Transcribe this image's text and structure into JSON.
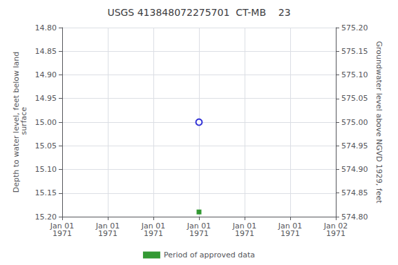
{
  "chart_data": {
    "type": "scatter",
    "title": "USGS 413848072275701  CT-MB    23",
    "ylabel": "Depth to water level, feet below land\n surface",
    "y2label": "Groundwater level above NGVD 1929, feet",
    "categories": [
      "Jan 01\n1971",
      "Jan 01\n1971",
      "Jan 01\n1971",
      "Jan 01\n1971",
      "Jan 01\n1971",
      "Jan 01\n1971",
      "Jan 02\n1971"
    ],
    "series": [
      {
        "values": [
          null,
          null,
          null,
          15.0,
          null,
          null,
          null
        ],
        "color": "#0000cc",
        "marker": "open circle"
      },
      {
        "name": "Period of approved data",
        "values": [
          null,
          null,
          null,
          15.19,
          null,
          null,
          null
        ],
        "color": "#008000",
        "marker": "square"
      }
    ],
    "ylim": [
      15.2,
      14.8
    ],
    "yticks": [
      {
        "value": 14.8,
        "label": "14.80"
      },
      14.85,
      {
        "value": 14.9,
        "label": "14.90"
      },
      14.95,
      {
        "value": 15.0,
        "label": "15.00"
      },
      15.05,
      {
        "value": 15.1,
        "label": "15.10"
      },
      15.15,
      {
        "value": 15.2,
        "label": "15.20"
      }
    ],
    "y2lim": [
      574.8,
      575.2
    ],
    "y2ticks": [
      {
        "value": 574.8,
        "label": "574.80"
      },
      574.85,
      {
        "value": 574.9,
        "label": "574.90"
      },
      574.95,
      {
        "value": 575.0,
        "label": "575.00"
      },
      575.05,
      {
        "value": 575.1,
        "label": "575.10"
      },
      575.15,
      {
        "value": 575.2,
        "label": "575.20"
      }
    ],
    "grid": true,
    "legend": "bottom"
  }
}
